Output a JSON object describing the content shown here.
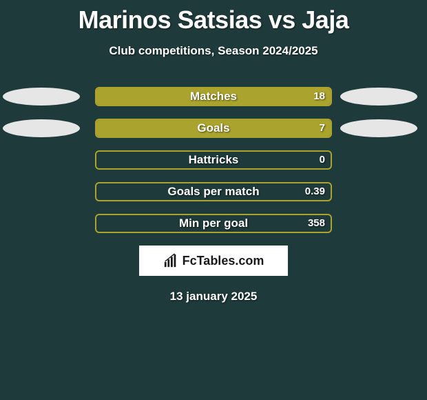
{
  "title": "Marinos Satsias vs Jaja",
  "subtitle": "Club competitions, Season 2024/2025",
  "date": "13 january 2025",
  "brand": "FcTables.com",
  "colors": {
    "background": "#1f3a3a",
    "bar_fill": "#aaa32d",
    "bar_border": "#aaa32d",
    "ellipse": "#e6e6e6",
    "brand_bg": "#ffffff",
    "brand_text": "#1a1a1a",
    "text": "#ffffff"
  },
  "stats": [
    {
      "label": "Matches",
      "value": "18",
      "fill": 1.0,
      "show_left_ellipse": true,
      "show_right_ellipse": true
    },
    {
      "label": "Goals",
      "value": "7",
      "fill": 1.0,
      "show_left_ellipse": true,
      "show_right_ellipse": true
    },
    {
      "label": "Hattricks",
      "value": "0",
      "fill": 0.0,
      "show_left_ellipse": false,
      "show_right_ellipse": false
    },
    {
      "label": "Goals per match",
      "value": "0.39",
      "fill": 0.0,
      "show_left_ellipse": false,
      "show_right_ellipse": false
    },
    {
      "label": "Min per goal",
      "value": "358",
      "fill": 0.0,
      "show_left_ellipse": false,
      "show_right_ellipse": false
    }
  ]
}
